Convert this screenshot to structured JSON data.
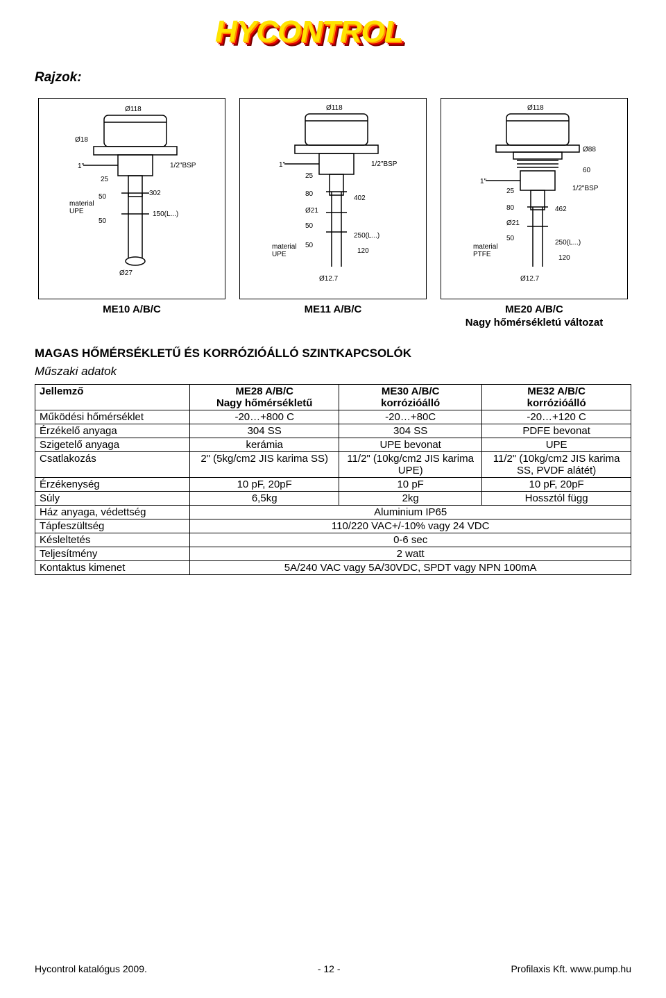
{
  "logo": {
    "text": "HYCONTROL"
  },
  "section_title": "Rajzok:",
  "models_row": {
    "me10": {
      "line1": "ME10 A/B/C"
    },
    "me11": {
      "line1": "ME11 A/B/C"
    },
    "me20": {
      "line1": "ME20 A/B/C",
      "line2": "Nagy hőmérsékletú változat"
    }
  },
  "heading_main": "MAGAS HŐMÉRSÉKLETŰ ÉS KORRÓZIÓÁLLÓ SZINTKAPCSOLÓK",
  "heading_sub": "Műszaki adatok",
  "table": {
    "header": {
      "c0": "Jellemző",
      "c1a": "ME28 A/B/C",
      "c1b": "Nagy hőmérsékletű",
      "c2a": "ME30 A/B/C",
      "c2b": "korrózióálló",
      "c3a": "ME32 A/B/C",
      "c3b": "korrózióálló"
    },
    "rows": [
      {
        "label": "Működési hőmérséklet",
        "c1": "-20…+800 C",
        "c2": "-20…+80C",
        "c3": "-20…+120 C"
      },
      {
        "label": "Érzékelő anyaga",
        "c1": "304 SS",
        "c2": "304 SS",
        "c3": "PDFE bevonat"
      },
      {
        "label": "Szigetelő anyaga",
        "c1": "kerámia",
        "c2": "UPE bevonat",
        "c3": "UPE"
      },
      {
        "label": "Csatlakozás",
        "c1": "2\" (5kg/cm2 JIS karima SS)",
        "c2": "11/2\" (10kg/cm2 JIS karima UPE)",
        "c3": "11/2\" (10kg/cm2 JIS karima SS, PVDF alátét)"
      },
      {
        "label": "Érzékenység",
        "c1": "10 pF, 20pF",
        "c2": "10 pF",
        "c3": "10 pF, 20pF"
      },
      {
        "label": "Súly",
        "c1": "6,5kg",
        "c2": "2kg",
        "c3": "Hossztól függ"
      },
      {
        "label": "Ház anyaga, védettség",
        "span": "Aluminium IP65"
      },
      {
        "label": "Tápfeszültség",
        "span": "110/220 VAC+/-10% vagy 24 VDC"
      },
      {
        "label": "Késleltetés",
        "span": "0-6 sec"
      },
      {
        "label": "Teljesítmény",
        "span": "2 watt"
      },
      {
        "label": "Kontaktus kimenet",
        "span": "5A/240 VAC vagy 5A/30VDC, SPDT vagy NPN 100mA"
      }
    ]
  },
  "footer": {
    "left": "Hycontrol katalógus 2009.",
    "center": "- 12 -",
    "right": "Profilaxis Kft. www.pump.hu"
  },
  "colors": {
    "text": "#000000",
    "bg": "#ffffff",
    "border": "#000000",
    "logo_dark": "#7a0000",
    "logo_red": "#e30000",
    "logo_orange": "#ff8c00",
    "logo_yellow": "#ffe400"
  }
}
